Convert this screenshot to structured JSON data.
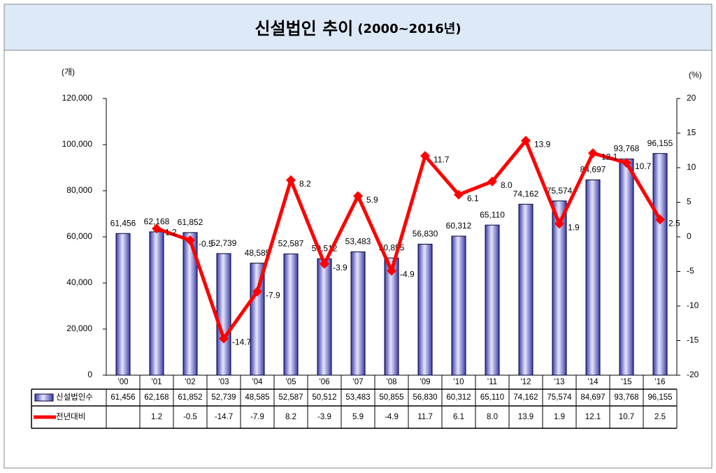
{
  "chart_data": {
    "type": "bar_line",
    "title": "신설법인  추이",
    "subtitle": "(2000~2016년)",
    "y_label": "(개)",
    "y2_label": "(%)",
    "categories": [
      "'00",
      "'01",
      "'02",
      "'03",
      "'04",
      "'05",
      "'06",
      "'07",
      "'08",
      "'09",
      "'10",
      "'11",
      "'12",
      "'13",
      "'14",
      "'15",
      "'16"
    ],
    "series": [
      {
        "name": "신설법인수",
        "type": "bar",
        "color": "#9a9ae8",
        "values": [
          61456,
          62168,
          61852,
          52739,
          48585,
          52587,
          50512,
          53483,
          50855,
          56830,
          60312,
          65110,
          74162,
          75574,
          84697,
          93768,
          96155
        ],
        "value_labels": [
          "61,456",
          "62,168",
          "61,852",
          "52,739",
          "48,585",
          "52,587",
          "50,512",
          "53,483",
          "50,855",
          "56,830",
          "60,312",
          "65,110",
          "74,162",
          "75,574",
          "84,697",
          "93,768",
          "96,155"
        ]
      },
      {
        "name": "전년대비",
        "type": "line",
        "axis": "y2",
        "color": "#ff0000",
        "values": [
          null,
          1.2,
          -0.5,
          -14.7,
          -7.9,
          8.2,
          -3.9,
          5.9,
          -4.9,
          11.7,
          6.1,
          8.0,
          13.9,
          1.9,
          12.1,
          10.7,
          2.5
        ],
        "value_labels": [
          null,
          "1.2",
          "-0.5",
          "-14.7",
          "-7.9",
          "8.2",
          "-3.9",
          "5.9",
          "-4.9",
          "11.7",
          "6.1",
          "8.0",
          "13.9",
          "1.9",
          "12.1",
          "10.7",
          "2.5"
        ]
      }
    ],
    "ylim": [
      0,
      120000
    ],
    "yticks": [
      0,
      {
        "value": 20000,
        "label": "20,000"
      },
      {
        "value": 40000,
        "label": "40,000"
      },
      {
        "value": 60000,
        "label": "60,000"
      },
      {
        "value": 80000,
        "label": "80,000"
      },
      {
        "value": 100000,
        "label": "100,000"
      },
      {
        "value": 120000,
        "label": "120,000"
      }
    ],
    "y2lim": [
      -20,
      20
    ],
    "y2ticks": [
      -20,
      -15,
      -10,
      -5,
      0,
      5,
      10,
      15,
      20
    ]
  }
}
